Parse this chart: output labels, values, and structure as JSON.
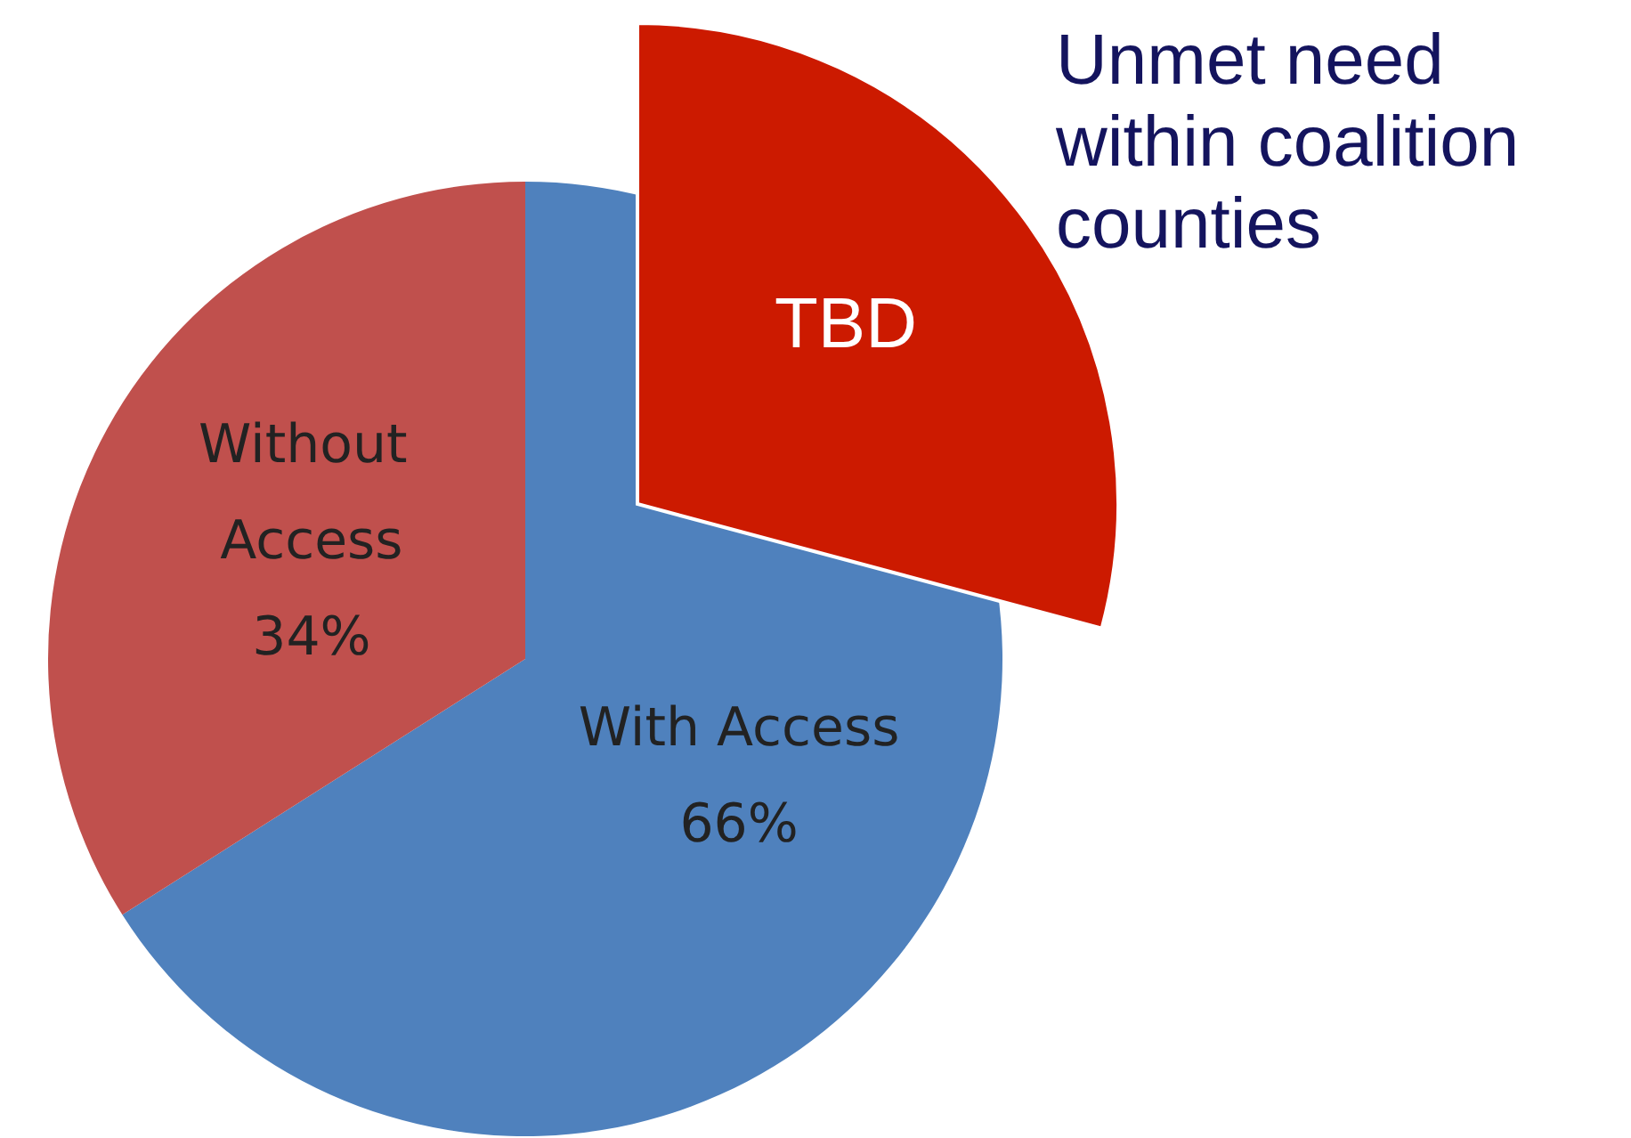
{
  "chart_data": {
    "type": "pie",
    "title": "Unmet need within coalition counties",
    "categories": [
      "With Access",
      "Without Access"
    ],
    "values": [
      66,
      34
    ],
    "colors": [
      "#4f81bd",
      "#c0504d"
    ],
    "value_labels": [
      "66%",
      "34%"
    ],
    "annotations": [
      "TBD"
    ],
    "legend": false
  }
}
